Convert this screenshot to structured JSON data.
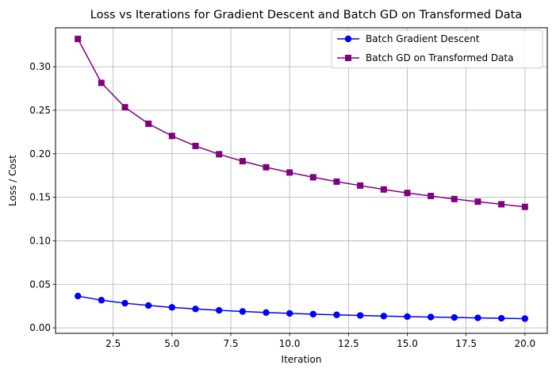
{
  "chart_data": {
    "type": "line",
    "title": "Loss vs Iterations for Gradient Descent and Batch GD on Transformed Data",
    "xlabel": "Iteration",
    "ylabel": "Loss / Cost",
    "xlim": [
      0.05,
      20.95
    ],
    "ylim": [
      -0.0063,
      0.3448
    ],
    "xticks": [
      2.5,
      5.0,
      7.5,
      10.0,
      12.5,
      15.0,
      17.5,
      20.0
    ],
    "xtick_labels": [
      "2.5",
      "5.0",
      "7.5",
      "10.0",
      "12.5",
      "15.0",
      "17.5",
      "20.0"
    ],
    "yticks": [
      0.0,
      0.05,
      0.1,
      0.15,
      0.2,
      0.25,
      0.3
    ],
    "ytick_labels": [
      "0.00",
      "0.05",
      "0.10",
      "0.15",
      "0.20",
      "0.25",
      "0.30"
    ],
    "grid": true,
    "legend_position": "top-right",
    "x": [
      1,
      2,
      3,
      4,
      5,
      6,
      7,
      8,
      9,
      10,
      11,
      12,
      13,
      14,
      15,
      16,
      17,
      18,
      19,
      20
    ],
    "series": [
      {
        "name": "Batch Gradient Descent",
        "color": "#0000ff",
        "marker": "circle",
        "values": [
          0.0365,
          0.0318,
          0.0283,
          0.0257,
          0.0235,
          0.0217,
          0.0201,
          0.0188,
          0.0176,
          0.0166,
          0.0157,
          0.0149,
          0.0142,
          0.0135,
          0.0129,
          0.0124,
          0.0119,
          0.0114,
          0.011,
          0.0106
        ]
      },
      {
        "name": "Batch GD on Transformed Data",
        "color": "#800080",
        "marker": "square",
        "values": [
          0.332,
          0.2815,
          0.2535,
          0.2345,
          0.2205,
          0.209,
          0.1995,
          0.1915,
          0.1845,
          0.1785,
          0.173,
          0.168,
          0.1635,
          0.159,
          0.155,
          0.1515,
          0.148,
          0.145,
          0.142,
          0.139
        ]
      }
    ]
  }
}
